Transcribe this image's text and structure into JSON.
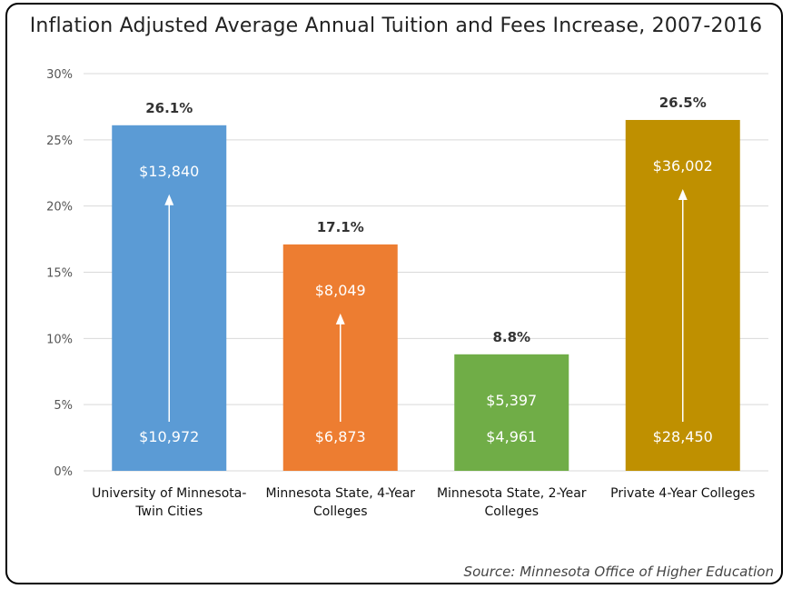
{
  "chart_data": {
    "type": "bar",
    "title": "Inflation Adjusted Average Annual Tuition and Fees Increase, 2007-2016",
    "categories": [
      [
        "University of Minnesota-",
        "Twin Cities"
      ],
      [
        "Minnesota State, 4-Year",
        "Colleges"
      ],
      [
        "Minnesota State, 2-Year",
        "Colleges"
      ],
      [
        "Private 4-Year Colleges"
      ]
    ],
    "values": [
      26.1,
      17.1,
      8.8,
      26.5
    ],
    "value_labels": [
      "26.1%",
      "17.1%",
      "8.8%",
      "26.5%"
    ],
    "start_costs": [
      "$10,972",
      "$6,873",
      "$4,961",
      "$28,450"
    ],
    "end_costs": [
      "$13,840",
      "$8,049",
      "$5,397",
      "$36,002"
    ],
    "colors": [
      "#5b9bd5",
      "#ed7d31",
      "#70ad47",
      "#bf9000"
    ],
    "ylim": [
      0,
      30
    ],
    "yticks": [
      0,
      5,
      10,
      15,
      20,
      25,
      30
    ],
    "ytick_labels": [
      "0%",
      "5%",
      "10%",
      "15%",
      "20%",
      "25%",
      "30%"
    ],
    "grid": true,
    "xlabel": "",
    "ylabel": ""
  },
  "source": "Source: Minnesota Office of Higher Education"
}
